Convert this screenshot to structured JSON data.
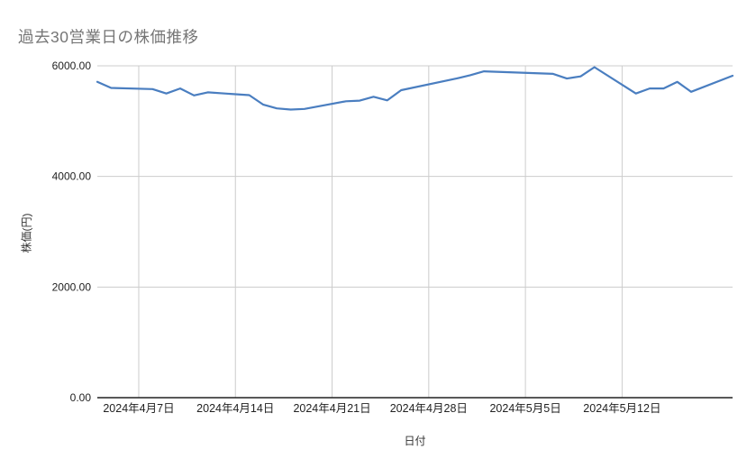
{
  "page": {
    "background": "#ffffff",
    "title_color": "#757575"
  },
  "chart_data": {
    "type": "line",
    "title": "過去30営業日の株価推移",
    "xlabel": "日付",
    "ylabel": "株価(円)",
    "ylim": [
      0,
      6000
    ],
    "grid": true,
    "legend": "none",
    "line_color": "#4a7ec0",
    "gridline_color": "#cccccc",
    "axis_line_color": "#212121",
    "tick_label_color": "#222222",
    "y_ticks": [
      {
        "value": 0,
        "label": "0.00"
      },
      {
        "value": 2000,
        "label": "2000.00"
      },
      {
        "value": 4000,
        "label": "4000.00"
      },
      {
        "value": 6000,
        "label": "6000.00"
      }
    ],
    "x_range": [
      "2024-04-04",
      "2024-05-20"
    ],
    "x_gridlines": [
      {
        "date": "2024-04-07",
        "label": "2024年4月7日"
      },
      {
        "date": "2024-04-14",
        "label": "2024年4月14日"
      },
      {
        "date": "2024-04-21",
        "label": "2024年4月21日"
      },
      {
        "date": "2024-04-28",
        "label": "2024年4月28日"
      },
      {
        "date": "2024-05-05",
        "label": "2024年5月5日"
      },
      {
        "date": "2024-05-12",
        "label": "2024年5月12日"
      }
    ],
    "series": [
      {
        "name": "株価",
        "color": "#4a7ec0",
        "points": [
          {
            "date": "2024-04-04",
            "value": 5710
          },
          {
            "date": "2024-04-05",
            "value": 5600
          },
          {
            "date": "2024-04-08",
            "value": 5580
          },
          {
            "date": "2024-04-09",
            "value": 5500
          },
          {
            "date": "2024-04-10",
            "value": 5590
          },
          {
            "date": "2024-04-11",
            "value": 5465
          },
          {
            "date": "2024-04-12",
            "value": 5520
          },
          {
            "date": "2024-04-15",
            "value": 5470
          },
          {
            "date": "2024-04-16",
            "value": 5300
          },
          {
            "date": "2024-04-17",
            "value": 5230
          },
          {
            "date": "2024-04-18",
            "value": 5210
          },
          {
            "date": "2024-04-19",
            "value": 5220
          },
          {
            "date": "2024-04-22",
            "value": 5360
          },
          {
            "date": "2024-04-23",
            "value": 5370
          },
          {
            "date": "2024-04-24",
            "value": 5440
          },
          {
            "date": "2024-04-25",
            "value": 5375
          },
          {
            "date": "2024-04-26",
            "value": 5560
          },
          {
            "date": "2024-04-30",
            "value": 5770
          },
          {
            "date": "2024-05-01",
            "value": 5830
          },
          {
            "date": "2024-05-02",
            "value": 5900
          },
          {
            "date": "2024-05-07",
            "value": 5855
          },
          {
            "date": "2024-05-08",
            "value": 5770
          },
          {
            "date": "2024-05-09",
            "value": 5810
          },
          {
            "date": "2024-05-10",
            "value": 5975
          },
          {
            "date": "2024-05-13",
            "value": 5500
          },
          {
            "date": "2024-05-14",
            "value": 5590
          },
          {
            "date": "2024-05-15",
            "value": 5590
          },
          {
            "date": "2024-05-16",
            "value": 5710
          },
          {
            "date": "2024-05-17",
            "value": 5530
          },
          {
            "date": "2024-05-20",
            "value": 5820
          }
        ]
      }
    ]
  }
}
